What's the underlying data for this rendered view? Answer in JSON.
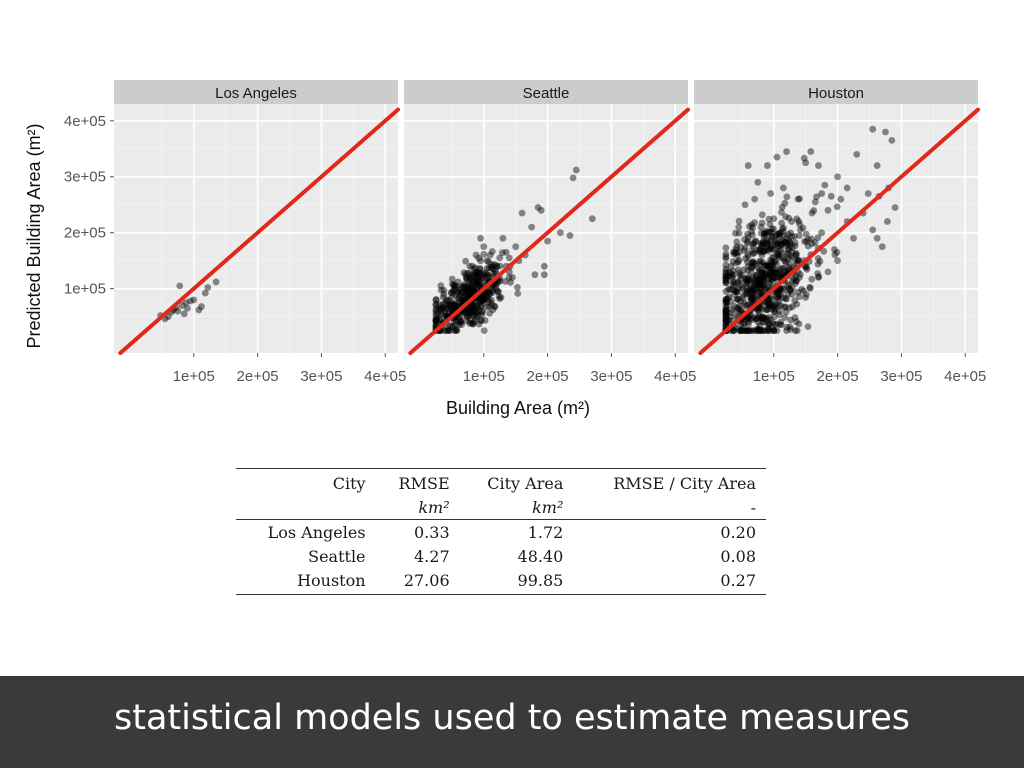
{
  "chart_data": {
    "type": "scatter",
    "facets": [
      {
        "title": "Los Angeles",
        "points": [
          [
            48000,
            52000
          ],
          [
            55000,
            46000
          ],
          [
            60000,
            50000
          ],
          [
            68000,
            62000
          ],
          [
            72000,
            66000
          ],
          [
            78000,
            105000
          ],
          [
            75000,
            60000
          ],
          [
            82000,
            70000
          ],
          [
            85000,
            55000
          ],
          [
            88000,
            75000
          ],
          [
            95000,
            78000
          ],
          [
            100000,
            80000
          ],
          [
            108000,
            62000
          ],
          [
            112000,
            68000
          ],
          [
            118000,
            92000
          ],
          [
            122000,
            102000
          ],
          [
            135000,
            112000
          ],
          [
            65000,
            58000
          ],
          [
            90000,
            65000
          ]
        ]
      },
      {
        "title": "Seattle",
        "points": [
          [
            160000,
            235000
          ],
          [
            175000,
            210000
          ],
          [
            200000,
            185000
          ],
          [
            185000,
            245000
          ],
          [
            190000,
            240000
          ],
          [
            245000,
            312000
          ],
          [
            240000,
            298000
          ],
          [
            220000,
            200000
          ],
          [
            235000,
            195000
          ],
          [
            270000,
            225000
          ],
          [
            195000,
            140000
          ],
          [
            195000,
            125000
          ],
          [
            180000,
            125000
          ],
          [
            165000,
            160000
          ],
          [
            140000,
            155000
          ],
          [
            125000,
            155000
          ],
          [
            135000,
            165000
          ],
          [
            130000,
            190000
          ],
          [
            150000,
            175000
          ],
          [
            155000,
            150000
          ],
          [
            140000,
            130000
          ],
          [
            145000,
            120000
          ],
          [
            110000,
            160000
          ],
          [
            95000,
            190000
          ],
          [
            100000,
            175000
          ],
          [
            105000,
            150000
          ],
          [
            85000,
            135000
          ],
          [
            80000,
            120000
          ],
          [
            115000,
            135000
          ],
          [
            118000,
            112000
          ],
          [
            105000,
            125000
          ],
          [
            95000,
            150000
          ],
          [
            125000,
            120000
          ],
          [
            135000,
            140000
          ],
          [
            112000,
            100000
          ],
          [
            122000,
            95000
          ],
          [
            88000,
            160000
          ],
          [
            78000,
            140000
          ],
          [
            92000,
            120000
          ]
        ],
        "cluster": {
          "center": [
            75000,
            80000
          ],
          "spread": [
            28000,
            28000
          ],
          "count": 420
        }
      },
      {
        "title": "Houston",
        "points": [
          [
            60000,
            320000
          ],
          [
            75000,
            290000
          ],
          [
            90000,
            320000
          ],
          [
            105000,
            335000
          ],
          [
            120000,
            345000
          ],
          [
            150000,
            325000
          ],
          [
            158000,
            345000
          ],
          [
            170000,
            320000
          ],
          [
            200000,
            300000
          ],
          [
            215000,
            280000
          ],
          [
            255000,
            385000
          ],
          [
            275000,
            380000
          ],
          [
            285000,
            365000
          ],
          [
            280000,
            280000
          ],
          [
            262000,
            320000
          ],
          [
            248000,
            270000
          ],
          [
            230000,
            340000
          ],
          [
            265000,
            265000
          ],
          [
            290000,
            245000
          ],
          [
            278000,
            220000
          ],
          [
            255000,
            205000
          ],
          [
            270000,
            175000
          ],
          [
            262000,
            190000
          ],
          [
            240000,
            235000
          ],
          [
            225000,
            190000
          ],
          [
            215000,
            220000
          ],
          [
            205000,
            260000
          ],
          [
            190000,
            265000
          ],
          [
            175000,
            270000
          ],
          [
            165000,
            255000
          ],
          [
            180000,
            285000
          ],
          [
            185000,
            240000
          ],
          [
            160000,
            235000
          ],
          [
            138000,
            260000
          ],
          [
            115000,
            280000
          ],
          [
            95000,
            270000
          ],
          [
            70000,
            260000
          ],
          [
            55000,
            250000
          ],
          [
            82000,
            232000
          ],
          [
            100000,
            225000
          ],
          [
            128000,
            220000
          ],
          [
            140000,
            195000
          ],
          [
            175000,
            200000
          ],
          [
            195000,
            170000
          ],
          [
            200000,
            150000
          ],
          [
            160000,
            180000
          ],
          [
            45000,
            210000
          ],
          [
            42000,
            175000
          ],
          [
            80000,
            210000
          ],
          [
            110000,
            200000
          ],
          [
            60000,
            140000
          ],
          [
            35000,
            120000
          ],
          [
            30000,
            130000
          ],
          [
            38000,
            105000
          ],
          [
            52000,
            88000
          ],
          [
            150000,
            140000
          ],
          [
            170000,
            120000
          ],
          [
            185000,
            130000
          ]
        ],
        "cluster": {
          "center": [
            85000,
            110000
          ],
          "spread": [
            38000,
            55000
          ],
          "count": 700
        }
      }
    ],
    "reference_line": "y = x",
    "xlabel": "Building Area   (m²)",
    "ylabel": "Predicted Building Area   (m²)",
    "xticks": [
      "1e+05",
      "2e+05",
      "3e+05",
      "4e+05"
    ],
    "yticks": [
      "1e+05",
      "2e+05",
      "3e+05",
      "4e+05"
    ],
    "xlim": [
      -25000,
      420000
    ],
    "ylim": [
      -15000,
      430000
    ],
    "grid": true,
    "colors": {
      "points": "#000000",
      "line": "#e0291c",
      "panel": "#ebebeb",
      "strip": "#cccccc"
    }
  },
  "table": {
    "headers": [
      "City",
      "RMSE",
      "City Area",
      "RMSE / City Area"
    ],
    "units": [
      "",
      "km²",
      "km²",
      "-"
    ],
    "rows": [
      [
        "Los Angeles",
        "0.33",
        "1.72",
        "0.20"
      ],
      [
        "Seattle",
        "4.27",
        "48.40",
        "0.08"
      ],
      [
        "Houston",
        "27.06",
        "99.85",
        "0.27"
      ]
    ]
  },
  "caption": "statistical models used to estimate measures"
}
